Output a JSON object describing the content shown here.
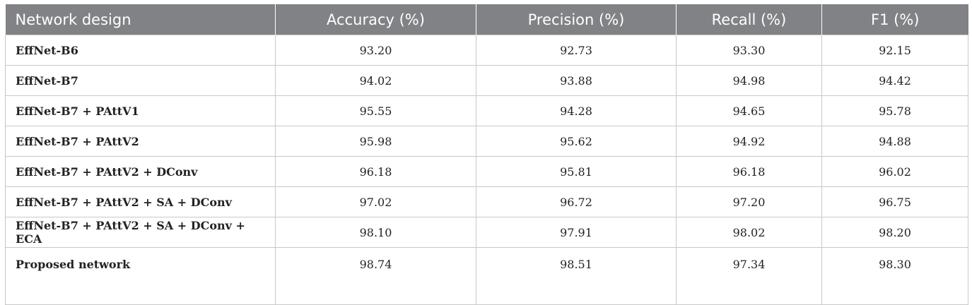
{
  "table": {
    "headers": [
      "Network design",
      "Accuracy (%)",
      "Precision (%)",
      "Recall (%)",
      "F1 (%)"
    ],
    "rows": [
      [
        "EffNet-B6",
        "93.20",
        "92.73",
        "93.30",
        "92.15"
      ],
      [
        "EffNet-B7",
        "94.02",
        "93.88",
        "94.98",
        "94.42"
      ],
      [
        "EffNet-B7 + PAttV1",
        "95.55",
        "94.28",
        "94.65",
        "95.78"
      ],
      [
        "EffNet-B7 + PAttV2",
        "95.98",
        "95.62",
        "94.92",
        "94.88"
      ],
      [
        "EffNet-B7 + PAttV2 + DConv",
        "96.18",
        "95.81",
        "96.18",
        "96.02"
      ],
      [
        "EffNet-B7 + PAttV2 + SA + DConv",
        "97.02",
        "96.72",
        "97.20",
        "96.75"
      ],
      [
        "EffNet-B7 + PAttV2 + SA + DConv + ECA",
        "98.10",
        "97.91",
        "98.02",
        "98.20"
      ],
      [
        "Proposed network",
        "98.74",
        "98.51",
        "97.34",
        "98.30"
      ]
    ]
  }
}
